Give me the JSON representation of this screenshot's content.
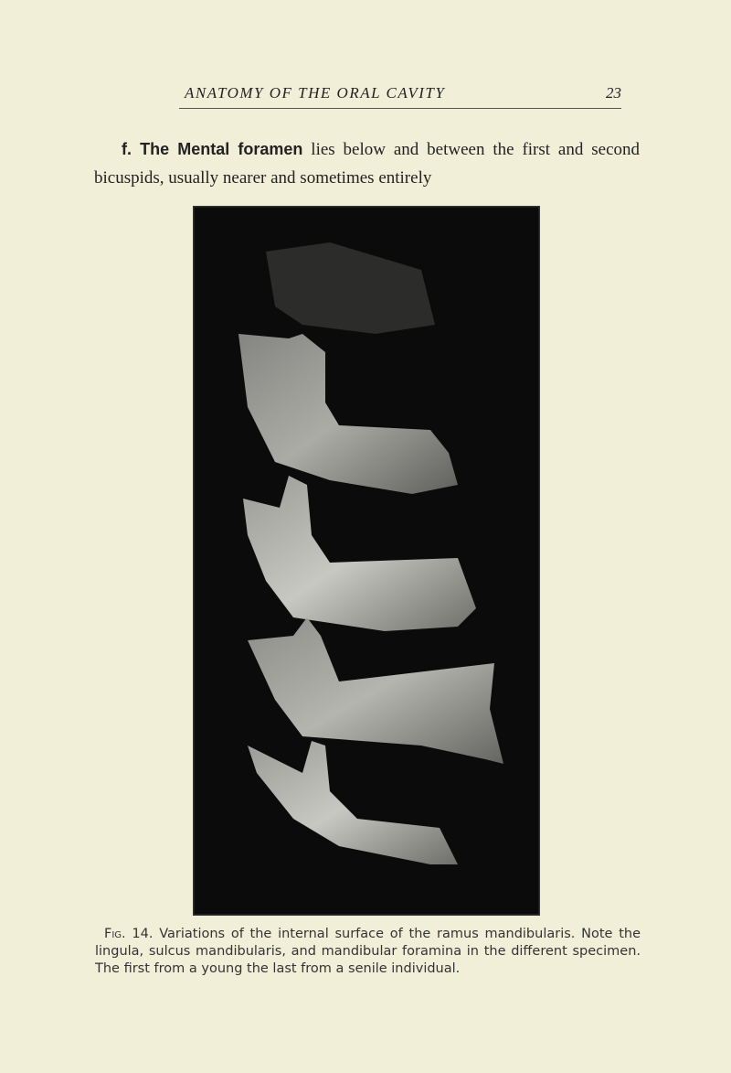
{
  "header": {
    "title": "ANATOMY OF THE ORAL CAVITY",
    "page_number": "23"
  },
  "paragraph": {
    "lead": "f. The Mental foramen",
    "text": "lies below and between the first and second bicuspids, usually nearer and sometimes entirely"
  },
  "figure": {
    "caption_label": "Fig. 14.",
    "caption": "Variations of the internal surface of the ramus mandibularis. Note the lingula, sulcus mandibularis, and mandibular foramina in the different specimen. The first from a young the last from a senile individual."
  }
}
